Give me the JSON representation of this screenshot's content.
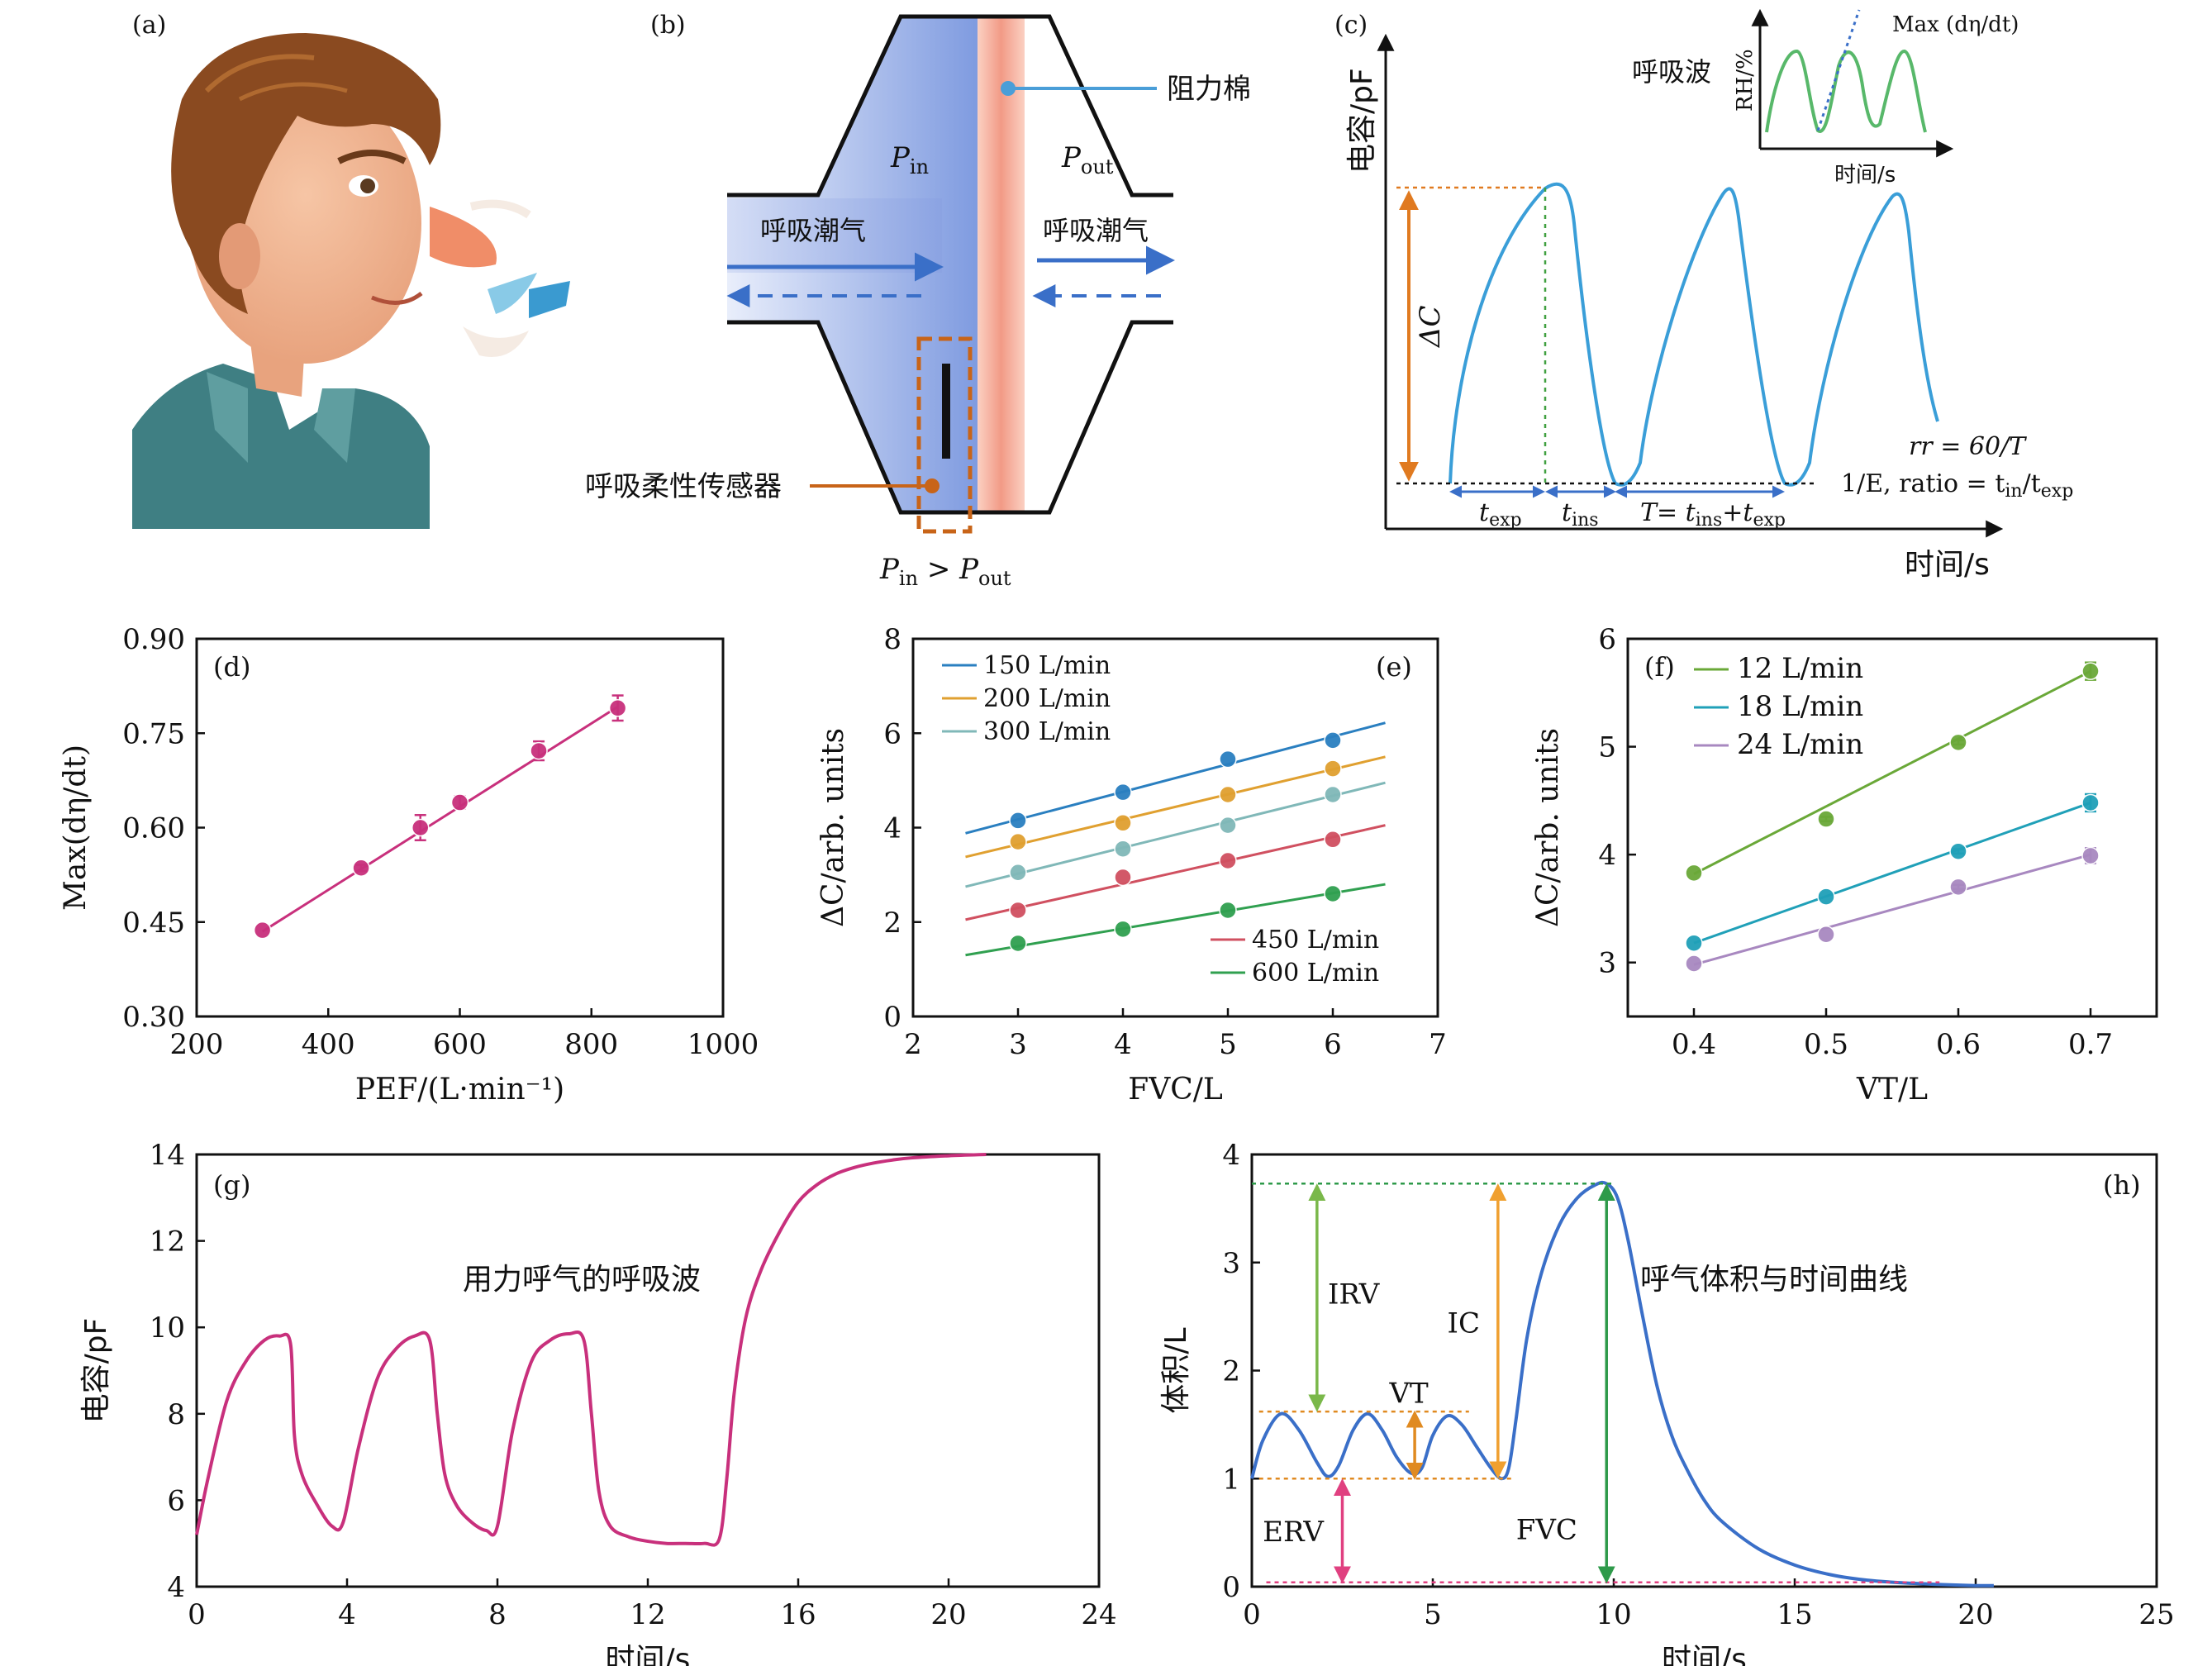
{
  "panels": {
    "a": {
      "label": "(a)"
    },
    "b": {
      "label": "(b)",
      "resistance_label": "阻力棉",
      "sensor_label": "呼吸柔性传感器",
      "tidal_left": "呼吸潮气",
      "tidal_right": "呼吸潮气",
      "p_in": "P",
      "p_in_sub": "in",
      "p_out": "P",
      "p_out_sub": "out",
      "relation": "P",
      "relation_sub1": "in",
      "relation_mid": " > P",
      "relation_sub2": "out"
    },
    "c": {
      "label": "(c)",
      "ylabel": "电容/pF",
      "xlabel": "时间/s",
      "delta_c": "ΔC",
      "t_exp": "t",
      "t_exp_sub": "exp",
      "t_ins": "t",
      "t_ins_sub": "ins",
      "period": "T= t",
      "period_sub1": "ins",
      "period_mid": "+t",
      "period_sub2": "exp",
      "rr_text": "rr = 60/T",
      "ratio_text_a": "1/E, ratio = t",
      "ratio_sub1": "in",
      "ratio_mid": "/t",
      "ratio_sub2": "exp",
      "inset_wave": "呼吸波",
      "inset_ylabel": "RH/%",
      "inset_xlabel": "时间/s",
      "inset_legend": "Max (dη/dt)"
    },
    "g": {
      "annotation": "用力呼气的呼吸波"
    },
    "h": {
      "annotation": "呼气体积与时间曲线",
      "labels": {
        "IRV": "IRV",
        "IC": "IC",
        "VT": "VT",
        "ERV": "ERV",
        "FVC": "FVC"
      }
    }
  },
  "colors": {
    "magenta": "#c8307c",
    "blue_curve": "#3a8fd0",
    "h_curve": "#3a6fc8",
    "green": "#7ab84a",
    "orange": "#f0a030",
    "dark_green": "#2e9a4a",
    "pink": "#e04080"
  },
  "chart_data": [
    {
      "panel": "d",
      "type": "scatter",
      "label": "(d)",
      "xlabel": "PEF/(L·min⁻¹)",
      "ylabel": "Max(dη/dt)",
      "xlim": [
        200,
        1000
      ],
      "ylim": [
        0.3,
        0.9
      ],
      "xticks": [
        "200",
        "400",
        "600",
        "800",
        "1000"
      ],
      "yticks": [
        "0.30",
        "0.45",
        "0.60",
        "0.75",
        "0.90"
      ],
      "series": [
        {
          "x": [
            300,
            450,
            540,
            600,
            720,
            840
          ],
          "y": [
            0.437,
            0.536,
            0.6,
            0.64,
            0.722,
            0.79
          ],
          "err": [
            0,
            0.005,
            0.02,
            0.01,
            0.015,
            0.02
          ],
          "fit": [
            [
              300,
              0.435
            ],
            [
              840,
              0.792
            ]
          ]
        }
      ]
    },
    {
      "panel": "e",
      "type": "scatter",
      "label": "(e)",
      "xlabel": "FVC/L",
      "ylabel": "ΔC/arb. units",
      "xlim": [
        2,
        7
      ],
      "ylim": [
        0,
        8
      ],
      "xticks": [
        "2",
        "3",
        "4",
        "5",
        "6",
        "7"
      ],
      "yticks": [
        "0",
        "2",
        "4",
        "6",
        "8"
      ],
      "series": [
        {
          "name": "150 L/min",
          "color": "#2a7fc0",
          "x": [
            3,
            4,
            5,
            6
          ],
          "y": [
            4.15,
            4.75,
            5.45,
            5.85
          ],
          "fit": [
            [
              2.5,
              3.88
            ],
            [
              6.5,
              6.22
            ]
          ]
        },
        {
          "name": "200 L/min",
          "color": "#e0a030",
          "x": [
            3,
            4,
            5,
            6
          ],
          "y": [
            3.7,
            4.1,
            4.7,
            5.25
          ],
          "fit": [
            [
              2.5,
              3.38
            ],
            [
              6.5,
              5.5
            ]
          ]
        },
        {
          "name": "300 L/min",
          "color": "#80b8b8",
          "x": [
            3,
            4,
            5,
            6
          ],
          "y": [
            3.05,
            3.55,
            4.05,
            4.7
          ],
          "fit": [
            [
              2.5,
              2.75
            ],
            [
              6.5,
              4.95
            ]
          ]
        },
        {
          "name": "450 L/min",
          "color": "#d05060",
          "x": [
            3,
            4,
            5,
            6
          ],
          "y": [
            2.25,
            2.95,
            3.3,
            3.75
          ],
          "fit": [
            [
              2.5,
              2.05
            ],
            [
              6.5,
              4.05
            ]
          ]
        },
        {
          "name": "600 L/min",
          "color": "#30a050",
          "x": [
            3,
            4,
            5,
            6
          ],
          "y": [
            1.55,
            1.85,
            2.25,
            2.6
          ],
          "fit": [
            [
              2.5,
              1.3
            ],
            [
              6.5,
              2.8
            ]
          ]
        }
      ]
    },
    {
      "panel": "f",
      "type": "scatter",
      "label": "(f)",
      "xlabel": "VT/L",
      "ylabel": "ΔC/arb. units",
      "xlim": [
        0.35,
        0.75
      ],
      "ylim": [
        2.5,
        6
      ],
      "xticks": [
        "0.4",
        "0.5",
        "0.6",
        "0.7"
      ],
      "yticks": [
        "3",
        "4",
        "5",
        "6"
      ],
      "series": [
        {
          "name": "12 L/min",
          "color": "#6aa838",
          "x": [
            0.4,
            0.5,
            0.6,
            0.7
          ],
          "y": [
            3.83,
            4.33,
            5.04,
            5.7
          ],
          "err": [
            0,
            0.02,
            0.02,
            0.08
          ],
          "fit": [
            [
              0.4,
              3.82
            ],
            [
              0.7,
              5.7
            ]
          ]
        },
        {
          "name": "18 L/min",
          "color": "#20a0b8",
          "x": [
            0.4,
            0.5,
            0.6,
            0.7
          ],
          "y": [
            3.18,
            3.61,
            4.03,
            4.48
          ],
          "err": [
            0,
            0,
            0.02,
            0.08
          ],
          "fit": [
            [
              0.4,
              3.18
            ],
            [
              0.7,
              4.48
            ]
          ]
        },
        {
          "name": "24 L/min",
          "color": "#a888c0",
          "x": [
            0.4,
            0.5,
            0.6,
            0.7
          ],
          "y": [
            2.99,
            3.26,
            3.7,
            3.99
          ],
          "err": [
            0,
            0,
            0.02,
            0.07
          ],
          "fit": [
            [
              0.4,
              2.98
            ],
            [
              0.7,
              4.0
            ]
          ]
        }
      ]
    },
    {
      "panel": "g",
      "type": "line",
      "label": "(g)",
      "xlabel": "时间/s",
      "ylabel": "电容/pF",
      "xlim": [
        0,
        24
      ],
      "ylim": [
        4,
        14
      ],
      "xticks": [
        "0",
        "4",
        "8",
        "12",
        "16",
        "20",
        "24"
      ],
      "yticks": [
        "4",
        "6",
        "8",
        "10",
        "12",
        "14"
      ],
      "series": [
        {
          "x": [
            0,
            0.3,
            0.8,
            1.3,
            1.8,
            2.2,
            2.5,
            2.6,
            2.8,
            3.2,
            3.6,
            3.9,
            4.3,
            4.8,
            5.3,
            5.8,
            6.2,
            6.4,
            6.6,
            6.9,
            7.3,
            7.7,
            8.0,
            8.4,
            8.9,
            9.4,
            9.9,
            10.3,
            10.5,
            10.7,
            11.0,
            11.5,
            12.0,
            12.5,
            13.0,
            13.5,
            13.9,
            14.1,
            14.3,
            14.6,
            15.0,
            15.5,
            16.0,
            16.5,
            17.0,
            17.5,
            18.0,
            18.5,
            19.0,
            20.0,
            21.0
          ],
          "y": [
            5.2,
            6.5,
            8.3,
            9.2,
            9.7,
            9.8,
            9.6,
            7.5,
            6.6,
            5.9,
            5.4,
            5.5,
            7.2,
            8.8,
            9.5,
            9.8,
            9.7,
            8.0,
            6.6,
            5.9,
            5.5,
            5.3,
            5.4,
            7.6,
            9.2,
            9.7,
            9.85,
            9.7,
            8.0,
            6.2,
            5.4,
            5.15,
            5.05,
            5.0,
            5.0,
            5.0,
            5.1,
            6.5,
            8.5,
            10.2,
            11.3,
            12.2,
            12.9,
            13.3,
            13.55,
            13.7,
            13.8,
            13.87,
            13.92,
            13.97,
            14.0
          ]
        }
      ]
    },
    {
      "panel": "h",
      "type": "line",
      "label": "(h)",
      "xlabel": "时间/s",
      "ylabel": "体积/L",
      "xlim": [
        0,
        25
      ],
      "ylim": [
        0,
        4
      ],
      "xticks": [
        "0",
        "5",
        "10",
        "15",
        "20",
        "25"
      ],
      "yticks": [
        "0",
        "1",
        "2",
        "3",
        "4"
      ],
      "series": [
        {
          "x": [
            0,
            0.3,
            0.8,
            1.3,
            1.8,
            2.1,
            2.4,
            2.8,
            3.2,
            3.6,
            4.0,
            4.4,
            4.7,
            5.0,
            5.4,
            5.8,
            6.2,
            6.6,
            6.9,
            7.1,
            7.3,
            7.6,
            8.0,
            8.5,
            9.0,
            9.5,
            9.8,
            10.1,
            10.4,
            10.8,
            11.2,
            11.6,
            12.0,
            12.5,
            13.0,
            14.0,
            15.0,
            16.0,
            17.0,
            18.0,
            19.0,
            20.0,
            20.5
          ],
          "y": [
            1.0,
            1.35,
            1.6,
            1.45,
            1.15,
            1.02,
            1.12,
            1.45,
            1.6,
            1.45,
            1.2,
            1.05,
            1.1,
            1.4,
            1.58,
            1.5,
            1.3,
            1.1,
            1.0,
            1.1,
            1.55,
            2.3,
            2.9,
            3.35,
            3.6,
            3.72,
            3.73,
            3.6,
            3.2,
            2.5,
            1.85,
            1.4,
            1.1,
            0.8,
            0.6,
            0.35,
            0.2,
            0.11,
            0.06,
            0.035,
            0.02,
            0.01,
            0.01
          ]
        }
      ]
    }
  ]
}
